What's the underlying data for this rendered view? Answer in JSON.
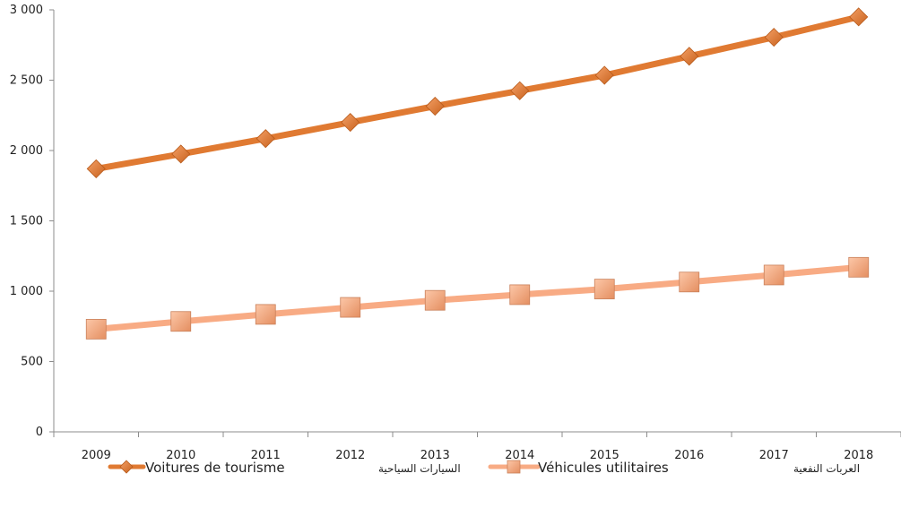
{
  "chart_data": {
    "type": "line",
    "title": "",
    "xlabel": "",
    "ylabel": "",
    "categories": [
      "2009",
      "2010",
      "2011",
      "2012",
      "2013",
      "2014",
      "2015",
      "2016",
      "2017",
      "2018"
    ],
    "ylim": [
      0,
      3000
    ],
    "yticks": [
      0,
      500,
      1000,
      1500,
      2000,
      2500,
      3000
    ],
    "ytick_labels": [
      "0",
      "500",
      "1 000",
      "1 500",
      "2 000",
      "2 500",
      "3 000"
    ],
    "grid": false,
    "legend_position": "bottom",
    "series": [
      {
        "name": "Voitures de tourisme",
        "name_ar": "السيارات السياحية",
        "color": "#E07A32",
        "marker": "diamond",
        "values": [
          1870,
          1975,
          2085,
          2200,
          2315,
          2425,
          2535,
          2670,
          2805,
          2950
        ]
      },
      {
        "name": "Véhicules utilitaires",
        "name_ar": "العربات النفعية",
        "color": "#F8AB84",
        "marker": "square",
        "values": [
          730,
          785,
          835,
          885,
          935,
          975,
          1015,
          1065,
          1115,
          1170
        ]
      }
    ]
  }
}
